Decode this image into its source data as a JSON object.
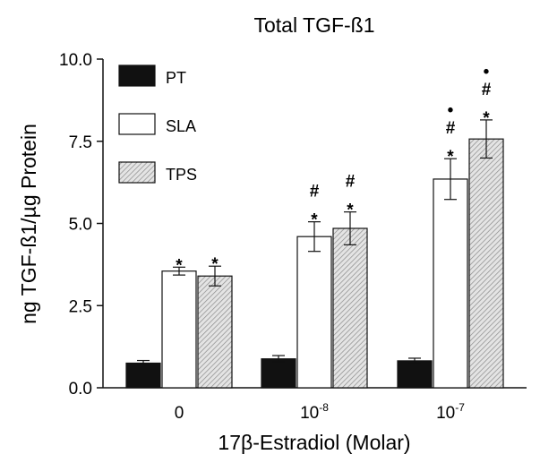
{
  "chart_data": {
    "type": "bar",
    "title": "Total TGF-ß1",
    "xlabel": "17β-Estradiol (Molar)",
    "ylabel": "ng TGF-ß1/µg Protein",
    "ylim": [
      0,
      10
    ],
    "yticks": [
      "0.0",
      "2.5",
      "5.0",
      "7.5",
      "10.0"
    ],
    "categories": [
      {
        "label": "0",
        "exp": ""
      },
      {
        "label": "10",
        "exp": "-8"
      },
      {
        "label": "10",
        "exp": "-7"
      }
    ],
    "series": [
      {
        "name": "PT",
        "fill": "#111111",
        "values": [
          0.75,
          0.88,
          0.82
        ],
        "errors": [
          0.08,
          0.1,
          0.08
        ]
      },
      {
        "name": "SLA",
        "fill": "#ffffff",
        "values": [
          3.55,
          4.6,
          6.35
        ],
        "errors": [
          0.12,
          0.45,
          0.62
        ]
      },
      {
        "name": "TPS",
        "fill": "hatch",
        "values": [
          3.4,
          4.85,
          7.57
        ],
        "errors": [
          0.3,
          0.5,
          0.58
        ]
      }
    ],
    "annotations": [
      {
        "category": 0,
        "series": 1,
        "marks": [
          "*"
        ]
      },
      {
        "category": 0,
        "series": 2,
        "marks": [
          "*"
        ]
      },
      {
        "category": 1,
        "series": 1,
        "marks": [
          "*",
          "#"
        ]
      },
      {
        "category": 1,
        "series": 2,
        "marks": [
          "*",
          "#"
        ]
      },
      {
        "category": 2,
        "series": 1,
        "marks": [
          "*",
          "#",
          "•"
        ]
      },
      {
        "category": 2,
        "series": 2,
        "marks": [
          "*",
          "#",
          "•"
        ]
      }
    ],
    "legend": "top-left",
    "grid": false
  }
}
